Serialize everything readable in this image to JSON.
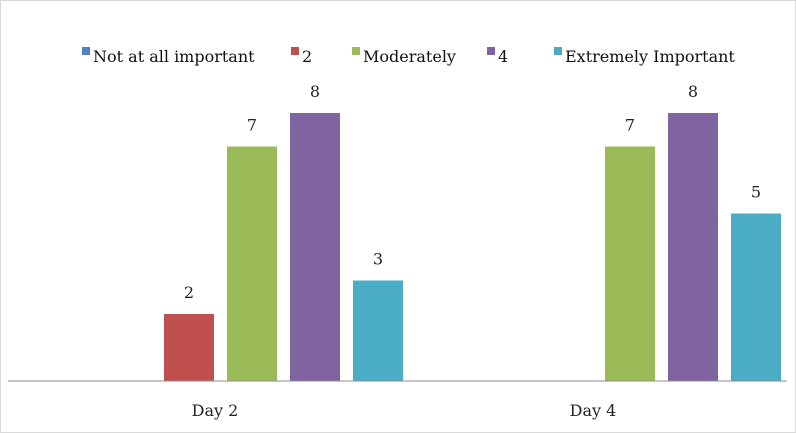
{
  "chart_data": {
    "type": "bar",
    "title": "",
    "xlabel": "",
    "ylabel": "",
    "categories": [
      "Day 2",
      "Day 4"
    ],
    "series": [
      {
        "name": "Not at all important",
        "color": "#4f81bd",
        "values": [
          0,
          0
        ],
        "labels": [
          "",
          ""
        ]
      },
      {
        "name": "2",
        "color": "#c0504d",
        "values": [
          2,
          0
        ],
        "labels": [
          "2",
          ""
        ]
      },
      {
        "name": "Moderately",
        "color": "#9bbb59",
        "values": [
          7,
          7
        ],
        "labels": [
          "7",
          "7"
        ]
      },
      {
        "name": "4",
        "color": "#8064a2",
        "values": [
          8,
          8
        ],
        "labels": [
          "8",
          "8"
        ]
      },
      {
        "name": "Extremely Important",
        "color": "#4bacc6",
        "values": [
          3,
          5
        ],
        "labels": [
          "3",
          "5"
        ]
      }
    ],
    "ylim": [
      0,
      8
    ],
    "grid": false,
    "legend": "top"
  }
}
